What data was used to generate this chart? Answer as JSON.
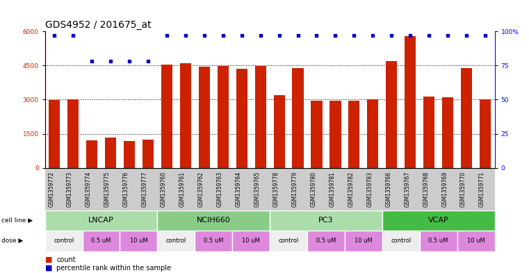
{
  "title": "GDS4952 / 201675_at",
  "samples": [
    "GSM1359772",
    "GSM1359773",
    "GSM1359774",
    "GSM1359775",
    "GSM1359776",
    "GSM1359777",
    "GSM1359760",
    "GSM1359761",
    "GSM1359762",
    "GSM1359763",
    "GSM1359764",
    "GSM1359765",
    "GSM1359778",
    "GSM1359779",
    "GSM1359780",
    "GSM1359781",
    "GSM1359782",
    "GSM1359783",
    "GSM1359766",
    "GSM1359767",
    "GSM1359768",
    "GSM1359769",
    "GSM1359770",
    "GSM1359771"
  ],
  "counts": [
    2980,
    3020,
    1200,
    1320,
    1180,
    1250,
    4550,
    4600,
    4450,
    4480,
    4350,
    4480,
    3200,
    4380,
    2960,
    2950,
    2960,
    3020,
    4680,
    5780,
    3150,
    3100,
    4400,
    3020
  ],
  "percentile_pct": [
    97,
    97,
    78,
    78,
    78,
    78,
    97,
    97,
    97,
    97,
    97,
    97,
    97,
    97,
    97,
    97,
    97,
    97,
    97,
    97,
    97,
    97,
    97,
    97
  ],
  "bar_color": "#cc2200",
  "dot_color": "#0000cc",
  "ylim_left": [
    0,
    6000
  ],
  "ylim_right": [
    0,
    100
  ],
  "yticks_left": [
    0,
    1500,
    3000,
    4500,
    6000
  ],
  "yticks_right": [
    0,
    25,
    50,
    75,
    100
  ],
  "cell_lines": [
    {
      "label": "LNCAP",
      "start": 0,
      "end": 6,
      "color": "#aaddaa"
    },
    {
      "label": "NCIH660",
      "start": 6,
      "end": 12,
      "color": "#88cc88"
    },
    {
      "label": "PC3",
      "start": 12,
      "end": 18,
      "color": "#aaddaa"
    },
    {
      "label": "VCAP",
      "start": 18,
      "end": 24,
      "color": "#44bb44"
    }
  ],
  "doses": [
    {
      "label": "control",
      "start": 0,
      "end": 2,
      "color": "#eeeeee"
    },
    {
      "label": "0.5 uM",
      "start": 2,
      "end": 4,
      "color": "#dd88dd"
    },
    {
      "label": "10 uM",
      "start": 4,
      "end": 6,
      "color": "#dd88dd"
    },
    {
      "label": "control",
      "start": 6,
      "end": 8,
      "color": "#eeeeee"
    },
    {
      "label": "0.5 uM",
      "start": 8,
      "end": 10,
      "color": "#dd88dd"
    },
    {
      "label": "10 uM",
      "start": 10,
      "end": 12,
      "color": "#dd88dd"
    },
    {
      "label": "control",
      "start": 12,
      "end": 14,
      "color": "#eeeeee"
    },
    {
      "label": "0.5 uM",
      "start": 14,
      "end": 16,
      "color": "#dd88dd"
    },
    {
      "label": "10 uM",
      "start": 16,
      "end": 18,
      "color": "#dd88dd"
    },
    {
      "label": "control",
      "start": 18,
      "end": 20,
      "color": "#eeeeee"
    },
    {
      "label": "0.5 uM",
      "start": 20,
      "end": 22,
      "color": "#dd88dd"
    },
    {
      "label": "10 uM",
      "start": 22,
      "end": 24,
      "color": "#dd88dd"
    }
  ],
  "bg_color": "#ffffff",
  "title_fontsize": 10,
  "tick_fontsize": 6.5,
  "label_fontsize": 8
}
